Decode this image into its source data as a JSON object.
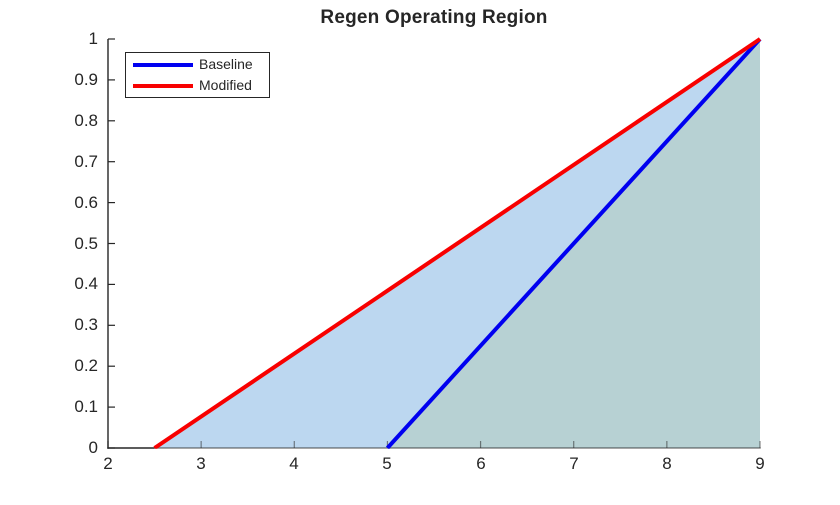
{
  "chart_data": {
    "type": "area",
    "title": "Regen Operating Region",
    "xlabel": "",
    "ylabel": "",
    "xlim": [
      2,
      9
    ],
    "ylim": [
      0,
      1
    ],
    "grid": false,
    "xticks": [
      2,
      3,
      4,
      5,
      6,
      7,
      8,
      9
    ],
    "yticks": [
      0,
      0.1,
      0.2,
      0.3,
      0.4,
      0.5,
      0.6,
      0.7,
      0.8,
      0.9,
      1
    ],
    "xtick_labels": [
      "2",
      "3",
      "4",
      "5",
      "6",
      "7",
      "8",
      "9"
    ],
    "ytick_labels": [
      "0",
      "0.1",
      "0.2",
      "0.3",
      "0.4",
      "0.5",
      "0.6",
      "0.7",
      "0.8",
      "0.9",
      "1"
    ],
    "axis_color": "#262626",
    "text_color": "#262626",
    "background_color": "#ffffff",
    "legend": {
      "position": "upper-left",
      "entries": [
        {
          "label": "Baseline",
          "color": "#0000F0"
        },
        {
          "label": "Modified",
          "color": "#F80000"
        }
      ]
    },
    "series": [
      {
        "name": "Baseline",
        "type": "line",
        "color": "#0000F0",
        "line_width": 4,
        "points": [
          [
            5,
            0
          ],
          [
            9,
            1
          ]
        ]
      },
      {
        "name": "Modified",
        "type": "line",
        "color": "#F80000",
        "line_width": 4,
        "points": [
          [
            2.5,
            0
          ],
          [
            9,
            1
          ]
        ]
      }
    ],
    "regions": [
      {
        "name": "modified-region",
        "fill": "#BCD7F0",
        "vertices": [
          [
            2.5,
            0
          ],
          [
            9,
            1
          ],
          [
            9,
            0
          ]
        ]
      },
      {
        "name": "baseline-overlap-region",
        "fill": "#B7D1D3",
        "vertices": [
          [
            5,
            0
          ],
          [
            9,
            1
          ],
          [
            9,
            0
          ]
        ]
      }
    ]
  }
}
